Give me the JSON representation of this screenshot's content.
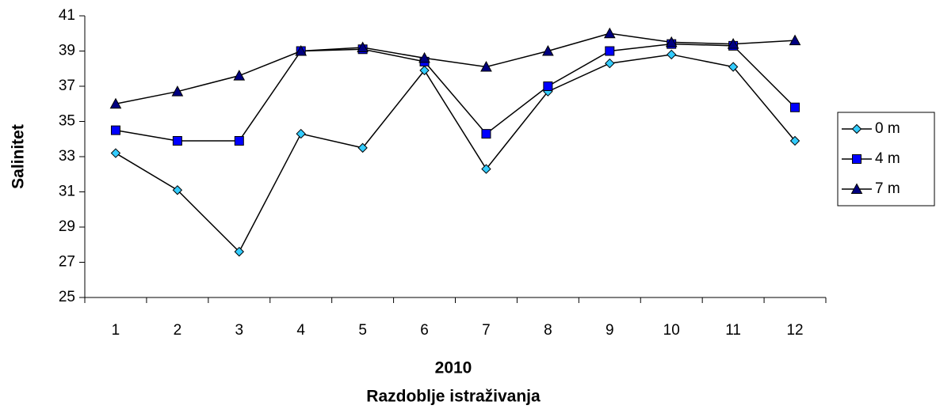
{
  "chart_data": {
    "type": "line",
    "ylabel": "Salinitet",
    "xlabel": [
      "2010",
      "Razdoblje istraživanja"
    ],
    "categories": [
      "1",
      "2",
      "3",
      "4",
      "5",
      "6",
      "7",
      "8",
      "9",
      "10",
      "11",
      "12"
    ],
    "ylim": [
      25,
      41
    ],
    "yticks": [
      25,
      27,
      29,
      31,
      33,
      35,
      37,
      39,
      41
    ],
    "grid": false,
    "legend": "right",
    "series": [
      {
        "name": "0 m",
        "color": "#33ccff",
        "marker": "diamond",
        "values": [
          33.2,
          31.1,
          27.6,
          34.3,
          33.5,
          37.9,
          32.3,
          36.7,
          38.3,
          38.8,
          38.1,
          33.9
        ]
      },
      {
        "name": "4 m",
        "color": "#0000ff",
        "marker": "square",
        "values": [
          34.5,
          33.9,
          33.9,
          39.0,
          39.1,
          38.4,
          34.3,
          37.0,
          39.0,
          39.4,
          39.3,
          35.8
        ]
      },
      {
        "name": "7 m",
        "color": "#000080",
        "marker": "triangle",
        "values": [
          36.0,
          36.7,
          37.6,
          39.0,
          39.2,
          38.6,
          38.1,
          39.0,
          40.0,
          39.5,
          39.4,
          39.6
        ]
      }
    ]
  }
}
